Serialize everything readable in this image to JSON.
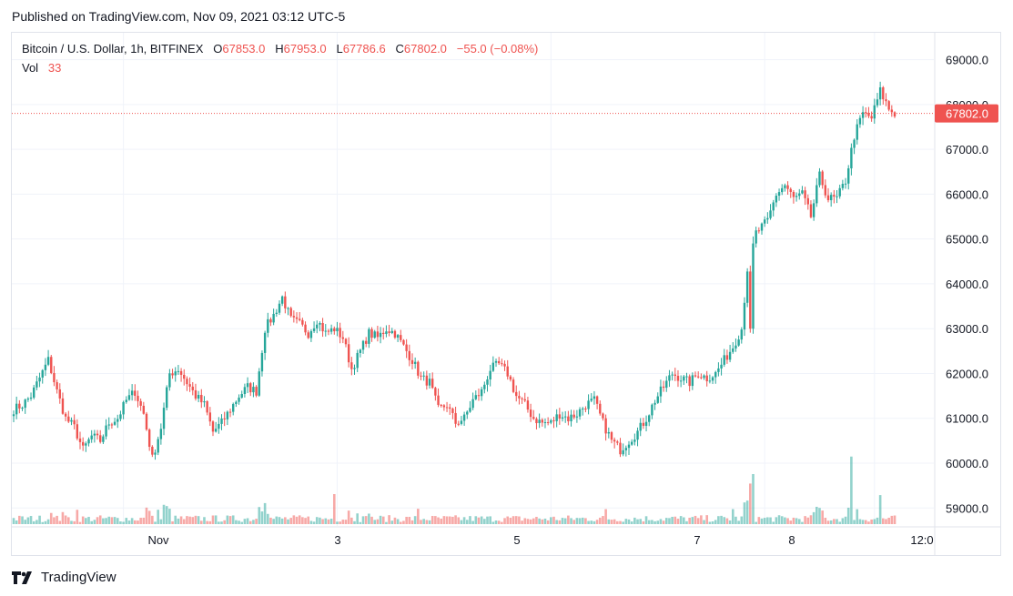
{
  "header": {
    "published": "Published on TradingView.com, Nov 09, 2021 03:12 UTC-5"
  },
  "legend": {
    "symbol": "Bitcoin / U.S. Dollar, 1h, BITFINEX",
    "open_label": "O",
    "open": "67853.0",
    "high_label": "H",
    "high": "67953.0",
    "low_label": "L",
    "low": "67786.6",
    "close_label": "C",
    "close": "67802.0",
    "change": "−55.0 (−0.08%)",
    "vol_label": "Vol",
    "vol": "33"
  },
  "footer": {
    "brand": "TradingView"
  },
  "colors": {
    "up": "#26a69a",
    "down": "#ef5350",
    "vol_up": "#26a69a80",
    "vol_down": "#ef535080",
    "grid": "#f0f3fa",
    "price_line": "#ef5350"
  },
  "chart_data": {
    "type": "candlestick",
    "title": "Bitcoin / U.S. Dollar, 1h, BITFINEX",
    "y_ticks": [
      "69000.0",
      "68000.0",
      "67000.0",
      "66000.0",
      "65000.0",
      "64000.0",
      "63000.0",
      "62000.0",
      "61000.0",
      "60000.0",
      "59000.0"
    ],
    "x_ticks": [
      "Nov",
      "3",
      "5",
      "7",
      "8",
      "12:0"
    ],
    "ylim": [
      58600,
      69600
    ],
    "last_price": "67802.0",
    "grid": true,
    "ohlc_anchors": [
      [
        0,
        61200
      ],
      [
        3,
        61300
      ],
      [
        6,
        61500
      ],
      [
        9,
        61900
      ],
      [
        12,
        62300
      ],
      [
        15,
        61600
      ],
      [
        18,
        61000
      ],
      [
        21,
        60800
      ],
      [
        24,
        60300
      ],
      [
        27,
        60600
      ],
      [
        30,
        60500
      ],
      [
        33,
        60900
      ],
      [
        36,
        61000
      ],
      [
        39,
        61400
      ],
      [
        42,
        61600
      ],
      [
        45,
        61100
      ],
      [
        48,
        60100
      ],
      [
        51,
        60800
      ],
      [
        54,
        62000
      ],
      [
        57,
        62100
      ],
      [
        60,
        61800
      ],
      [
        63,
        61500
      ],
      [
        66,
        61300
      ],
      [
        69,
        60700
      ],
      [
        72,
        60900
      ],
      [
        75,
        61200
      ],
      [
        78,
        61500
      ],
      [
        81,
        61700
      ],
      [
        84,
        61600
      ],
      [
        87,
        63000
      ],
      [
        90,
        63300
      ],
      [
        93,
        63700
      ],
      [
        96,
        63200
      ],
      [
        99,
        63100
      ],
      [
        102,
        62900
      ],
      [
        105,
        63200
      ],
      [
        108,
        62900
      ],
      [
        111,
        63000
      ],
      [
        114,
        62800
      ],
      [
        117,
        62100
      ],
      [
        120,
        62500
      ],
      [
        123,
        62900
      ],
      [
        126,
        62800
      ],
      [
        129,
        63000
      ],
      [
        132,
        62900
      ],
      [
        135,
        62600
      ],
      [
        138,
        62300
      ],
      [
        141,
        61900
      ],
      [
        144,
        61800
      ],
      [
        147,
        61200
      ],
      [
        150,
        61300
      ],
      [
        153,
        60900
      ],
      [
        156,
        61000
      ],
      [
        159,
        61400
      ],
      [
        162,
        61600
      ],
      [
        165,
        62100
      ],
      [
        168,
        62200
      ],
      [
        171,
        62000
      ],
      [
        174,
        61500
      ],
      [
        177,
        61300
      ],
      [
        180,
        61000
      ],
      [
        183,
        60900
      ],
      [
        186,
        60900
      ],
      [
        189,
        61100
      ],
      [
        192,
        61000
      ],
      [
        195,
        61100
      ],
      [
        198,
        61300
      ],
      [
        201,
        61400
      ],
      [
        204,
        60900
      ],
      [
        207,
        60500
      ],
      [
        210,
        60300
      ],
      [
        213,
        60500
      ],
      [
        216,
        60700
      ],
      [
        219,
        61000
      ],
      [
        222,
        61400
      ],
      [
        225,
        61700
      ],
      [
        228,
        62000
      ],
      [
        231,
        61900
      ],
      [
        234,
        61800
      ],
      [
        237,
        62000
      ],
      [
        240,
        61900
      ],
      [
        243,
        62000
      ],
      [
        246,
        62300
      ],
      [
        249,
        62600
      ],
      [
        252,
        63000
      ],
      [
        255,
        65000
      ],
      [
        258,
        65200
      ],
      [
        261,
        65400
      ],
      [
        264,
        66000
      ],
      [
        267,
        66200
      ],
      [
        270,
        65900
      ],
      [
        273,
        66000
      ],
      [
        276,
        65500
      ],
      [
        279,
        66400
      ],
      [
        282,
        65900
      ],
      [
        285,
        65900
      ],
      [
        288,
        66300
      ],
      [
        291,
        67300
      ],
      [
        294,
        67800
      ],
      [
        297,
        67700
      ],
      [
        300,
        68300
      ],
      [
        303,
        67900
      ],
      [
        305,
        67802
      ]
    ],
    "volume_bars_count": 306
  }
}
